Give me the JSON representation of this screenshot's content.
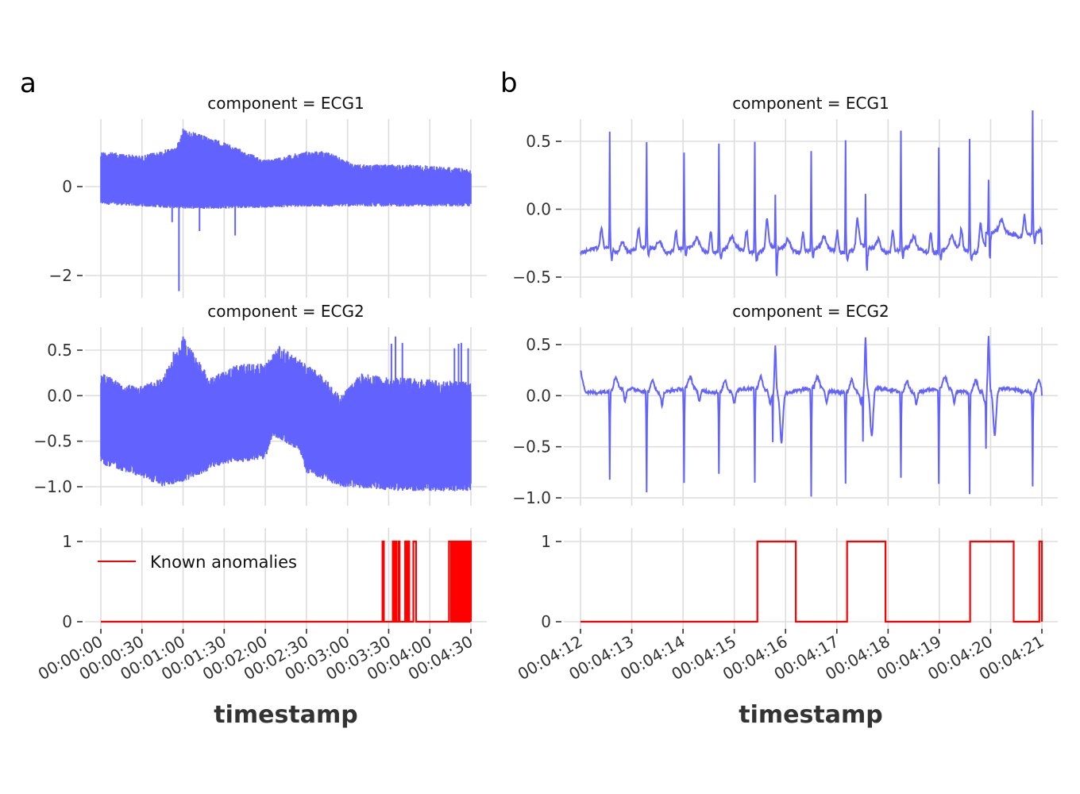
{
  "figure": {
    "panel_letters": [
      "a",
      "b"
    ],
    "colors": {
      "signal": "#6262ff",
      "anomaly": "#ff0000",
      "grid": "#dddddd",
      "text": "#333333"
    }
  },
  "chart_data": [
    {
      "panel": "a",
      "type": "line",
      "title": "component = ECG1",
      "xlabel": "",
      "ylabel": "",
      "x_range_seconds": [
        0,
        270
      ],
      "ylim": [
        -2.4,
        1.4
      ],
      "yticks": [
        0,
        -2
      ],
      "ytick_labels": [
        "0",
        "−2"
      ],
      "grid": true,
      "series": [
        {
          "name": "ECG1",
          "description": "dense ECG signal ~270 s, envelope approx",
          "envelope_upper_approx": [
            [
              0,
              0.8
            ],
            [
              30,
              0.7
            ],
            [
              55,
              0.9
            ],
            [
              60,
              1.3
            ],
            [
              80,
              1.1
            ],
            [
              90,
              1.0
            ],
            [
              120,
              0.6
            ],
            [
              150,
              0.8
            ],
            [
              165,
              0.8
            ],
            [
              185,
              0.5
            ],
            [
              230,
              0.5
            ],
            [
              270,
              0.4
            ]
          ],
          "envelope_lower_approx": [
            [
              0,
              -0.4
            ],
            [
              30,
              -0.45
            ],
            [
              60,
              -0.5
            ],
            [
              90,
              -0.5
            ],
            [
              150,
              -0.45
            ],
            [
              200,
              -0.45
            ],
            [
              270,
              -0.45
            ]
          ],
          "notable_spikes": [
            [
              52,
              -0.8
            ],
            [
              57,
              -2.35
            ],
            [
              72,
              -1.0
            ],
            [
              98,
              -1.1
            ],
            [
              60,
              1.3
            ]
          ]
        }
      ]
    },
    {
      "panel": "a",
      "type": "line",
      "title": "component = ECG2",
      "xlabel": "",
      "ylabel": "",
      "x_range_seconds": [
        0,
        270
      ],
      "ylim": [
        -1.15,
        0.7
      ],
      "yticks": [
        0.5,
        0.0,
        -0.5,
        -1.0
      ],
      "ytick_labels": [
        "0.5",
        "0.0",
        "−0.5",
        "−1.0"
      ],
      "grid": true,
      "series": [
        {
          "name": "ECG2",
          "description": "dense ECG signal ~270 s, envelope approx",
          "envelope_upper_approx": [
            [
              0,
              0.25
            ],
            [
              25,
              0.1
            ],
            [
              45,
              0.2
            ],
            [
              60,
              0.65
            ],
            [
              80,
              0.2
            ],
            [
              100,
              0.35
            ],
            [
              120,
              0.35
            ],
            [
              130,
              0.55
            ],
            [
              145,
              0.4
            ],
            [
              160,
              0.25
            ],
            [
              175,
              0.0
            ],
            [
              190,
              0.25
            ],
            [
              210,
              0.2
            ],
            [
              220,
              0.2
            ],
            [
              270,
              0.15
            ]
          ],
          "envelope_lower_approx": [
            [
              0,
              -0.75
            ],
            [
              30,
              -0.9
            ],
            [
              45,
              -1.0
            ],
            [
              60,
              -0.95
            ],
            [
              90,
              -0.75
            ],
            [
              120,
              -0.7
            ],
            [
              125,
              -0.45
            ],
            [
              145,
              -0.6
            ],
            [
              150,
              -0.85
            ],
            [
              175,
              -1.0
            ],
            [
              220,
              -1.05
            ],
            [
              270,
              -1.05
            ]
          ],
          "notable_spikes": [
            [
              53,
              0.48
            ],
            [
              60,
              0.65
            ],
            [
              212,
              0.57
            ],
            [
              215,
              0.65
            ],
            [
              220,
              0.58
            ],
            [
              258,
              0.52
            ],
            [
              261,
              0.57
            ],
            [
              263,
              0.58
            ],
            [
              268,
              0.52
            ]
          ]
        }
      ]
    },
    {
      "panel": "a",
      "type": "line",
      "title": "",
      "xlabel": "timestamp",
      "ylabel": "",
      "x_range_seconds": [
        0,
        270
      ],
      "ylim": [
        0,
        1
      ],
      "yticks": [
        1,
        0
      ],
      "ytick_labels": [
        "1",
        "0"
      ],
      "xtick_labels": [
        "00:00:00",
        "00:00:30",
        "00:01:00",
        "00:01:30",
        "00:02:00",
        "00:02:30",
        "00:03:00",
        "00:03:30",
        "00:04:00",
        "00:04:30"
      ],
      "xticks_seconds": [
        0,
        30,
        60,
        90,
        120,
        150,
        180,
        210,
        240,
        270
      ],
      "grid": true,
      "legend": {
        "entries": [
          "Known anomalies"
        ],
        "placement": "top-left"
      },
      "series": [
        {
          "name": "Known anomalies",
          "anomaly_intervals_seconds": [
            [
              205.5,
              206.5
            ],
            [
              213,
              214
            ],
            [
              214.5,
              215.5
            ],
            [
              217,
              218
            ],
            [
              222,
              223
            ],
            [
              224,
              225
            ],
            [
              228,
              230
            ],
            [
              254,
              255.5
            ],
            [
              256,
              257
            ],
            [
              258,
              259
            ],
            [
              259.5,
              260.5
            ],
            [
              261,
              262
            ],
            [
              263,
              264
            ],
            [
              265,
              266
            ],
            [
              267,
              268
            ],
            [
              269,
              270
            ]
          ]
        }
      ]
    },
    {
      "panel": "b",
      "type": "line",
      "title": "component = ECG1",
      "xlabel": "",
      "ylabel": "",
      "x_range_seconds": [
        252,
        261
      ],
      "ylim": [
        -0.6,
        0.65
      ],
      "yticks": [
        0.5,
        0.0,
        -0.5
      ],
      "ytick_labels": [
        "0.5",
        "0.0",
        "−0.5"
      ],
      "grid": true,
      "series": [
        {
          "name": "ECG1",
          "baseline": -0.3,
          "r_peaks": [
            {
              "t": 252.57,
              "value": 0.57
            },
            {
              "t": 253.29,
              "value": 0.48
            },
            {
              "t": 254.02,
              "value": 0.39
            },
            {
              "t": 254.7,
              "value": 0.48
            },
            {
              "t": 255.4,
              "value": 0.52
            },
            {
              "t": 255.8,
              "value": 0.1,
              "dip": -0.6
            },
            {
              "t": 256.5,
              "value": 0.43
            },
            {
              "t": 257.17,
              "value": 0.52
            },
            {
              "t": 257.56,
              "value": 0.08,
              "dip": -0.52
            },
            {
              "t": 258.25,
              "value": 0.56
            },
            {
              "t": 258.99,
              "value": 0.47
            },
            {
              "t": 259.59,
              "value": 0.52
            },
            {
              "t": 259.96,
              "value": 0.09,
              "dip": -0.55
            },
            {
              "t": 260.82,
              "value": 0.59
            }
          ],
          "end_value": -0.26
        }
      ]
    },
    {
      "panel": "b",
      "type": "line",
      "title": "component = ECG2",
      "xlabel": "",
      "ylabel": "",
      "x_range_seconds": [
        252,
        261
      ],
      "ylim": [
        -1.05,
        0.62
      ],
      "yticks": [
        0.5,
        0.0,
        -0.5,
        -1.0
      ],
      "ytick_labels": [
        "0.5",
        "0.0",
        "−0.5",
        "−1.0"
      ],
      "grid": true,
      "series": [
        {
          "name": "ECG2",
          "baseline": 0.05,
          "s_troughs": [
            {
              "t": 252.57,
              "value": -0.82
            },
            {
              "t": 253.29,
              "value": -0.92
            },
            {
              "t": 254.02,
              "value": -0.88
            },
            {
              "t": 254.7,
              "value": -0.76
            },
            {
              "t": 255.4,
              "value": -0.86
            },
            {
              "t": 255.8,
              "value": 0.51,
              "type": "ectopic",
              "after_dip": -0.43
            },
            {
              "t": 256.5,
              "value": -1.02
            },
            {
              "t": 257.17,
              "value": -0.84
            },
            {
              "t": 257.56,
              "value": 0.56,
              "type": "ectopic",
              "after_dip": -0.41
            },
            {
              "t": 258.25,
              "value": -0.79
            },
            {
              "t": 258.99,
              "value": -0.89
            },
            {
              "t": 259.59,
              "value": -0.96
            },
            {
              "t": 259.96,
              "value": 0.59,
              "type": "ectopic",
              "after_dip": -0.4
            },
            {
              "t": 260.82,
              "value": -0.88
            }
          ],
          "start_value": 0.25,
          "end_value": 0.0
        }
      ]
    },
    {
      "panel": "b",
      "type": "line",
      "title": "",
      "xlabel": "timestamp",
      "ylabel": "",
      "x_range_seconds": [
        252,
        261
      ],
      "ylim": [
        0,
        1
      ],
      "yticks": [
        1,
        0
      ],
      "ytick_labels": [
        "1",
        "0"
      ],
      "xtick_labels": [
        "00:04:12",
        "00:04:13",
        "00:04:14",
        "00:04:15",
        "00:04:16",
        "00:04:17",
        "00:04:18",
        "00:04:19",
        "00:04:20",
        "00:04:21"
      ],
      "xticks_seconds": [
        252,
        253,
        254,
        255,
        256,
        257,
        258,
        259,
        260,
        261
      ],
      "grid": true,
      "series": [
        {
          "name": "Known anomalies",
          "anomaly_intervals_seconds": [
            [
              255.45,
              256.2
            ],
            [
              257.2,
              257.95
            ],
            [
              259.6,
              260.45
            ],
            [
              260.95,
              261.0
            ]
          ]
        }
      ]
    }
  ]
}
